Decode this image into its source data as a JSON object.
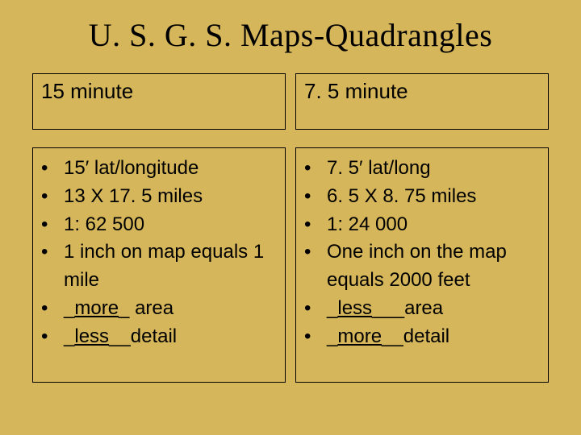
{
  "title": "U. S. G. S. Maps-Quadrangles",
  "background_color": "#d6b65a",
  "text_color": "#000000",
  "border_color": "#000000",
  "left": {
    "header": "15 minute",
    "bullets": [
      {
        "text": "15′ lat/longitude"
      },
      {
        "text": "13 X  17. 5 miles"
      },
      {
        "text": "1: 62 500"
      },
      {
        "text": "1 inch on map equals 1 mile"
      },
      {
        "prefix": "_",
        "underlined": "more",
        "suffix": "_ area"
      },
      {
        "prefix": "_",
        "underlined": "less",
        "suffix": "__detail"
      }
    ]
  },
  "right": {
    "header": "7. 5 minute",
    "bullets": [
      {
        "text": "7. 5′ lat/long"
      },
      {
        "text": "6. 5 X 8. 75 miles"
      },
      {
        "text": "1: 24 000"
      },
      {
        "text": "One inch on the map equals 2000 feet"
      },
      {
        "prefix": "_",
        "underlined": "less",
        "suffix": "___area"
      },
      {
        "prefix": "_",
        "underlined": "more",
        "suffix": "__detail"
      }
    ]
  }
}
